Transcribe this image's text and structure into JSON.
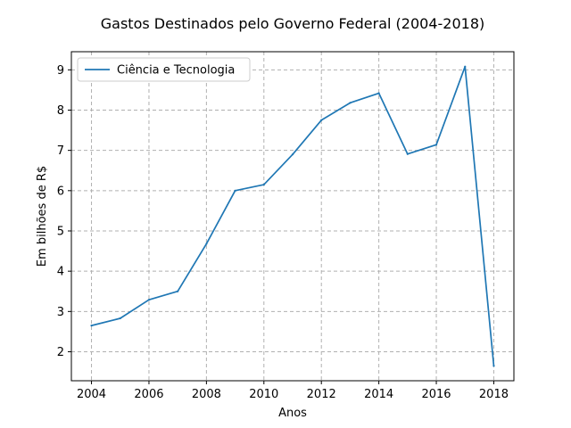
{
  "chart_data": {
    "type": "line",
    "title": "Gastos Destinados pelo Governo Federal (2004-2018)",
    "xlabel": "Anos",
    "ylabel": "Em bilhões de R$",
    "x": [
      2004,
      2005,
      2006,
      2007,
      2008,
      2009,
      2010,
      2011,
      2012,
      2013,
      2014,
      2015,
      2016,
      2017,
      2018
    ],
    "series": [
      {
        "name": "Ciência e Tecnologia",
        "color": "#1f77b4",
        "values": [
          2.65,
          2.83,
          3.29,
          3.5,
          4.68,
          6.0,
          6.15,
          6.9,
          7.75,
          8.18,
          8.42,
          6.91,
          7.14,
          9.08,
          1.65
        ]
      }
    ],
    "xlim": [
      2003.3,
      2018.7
    ],
    "ylim": [
      1.28,
      9.45
    ],
    "xticks": [
      2004,
      2006,
      2008,
      2010,
      2012,
      2014,
      2016,
      2018
    ],
    "yticks": [
      2,
      3,
      4,
      5,
      6,
      7,
      8,
      9
    ],
    "grid": true,
    "legend_position": "upper-left"
  }
}
